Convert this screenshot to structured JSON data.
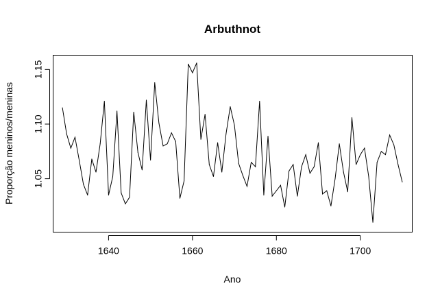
{
  "chart_data": {
    "type": "line",
    "title": "Arbuthnot",
    "xlabel": "Ano",
    "ylabel": "Proporção meninos/meninas",
    "xlim": [
      1626.7,
      1712.3
    ],
    "ylim": [
      1.0014,
      1.1634
    ],
    "x_ticks": [
      1640,
      1660,
      1680,
      1700
    ],
    "x_tick_labels": [
      "1640",
      "1660",
      "1680",
      "1700"
    ],
    "y_ticks": [
      1.05,
      1.1,
      1.15
    ],
    "y_tick_labels": [
      "1.05",
      "1.10",
      "1.15"
    ],
    "grid": false,
    "legend": "none",
    "series": [
      {
        "color": "#000000",
        "x": [
          1629,
          1630,
          1631,
          1632,
          1633,
          1634,
          1635,
          1636,
          1637,
          1638,
          1639,
          1640,
          1641,
          1642,
          1643,
          1644,
          1645,
          1646,
          1647,
          1648,
          1649,
          1650,
          1651,
          1652,
          1653,
          1654,
          1655,
          1656,
          1657,
          1658,
          1659,
          1660,
          1661,
          1662,
          1663,
          1664,
          1665,
          1666,
          1667,
          1668,
          1669,
          1670,
          1671,
          1672,
          1673,
          1674,
          1675,
          1676,
          1677,
          1678,
          1679,
          1680,
          1681,
          1682,
          1683,
          1684,
          1685,
          1686,
          1687,
          1688,
          1689,
          1690,
          1691,
          1692,
          1693,
          1694,
          1695,
          1696,
          1697,
          1698,
          1699,
          1700,
          1701,
          1702,
          1703,
          1704,
          1705,
          1706,
          1707,
          1708,
          1709,
          1710
        ],
        "y": [
          1.115,
          1.091,
          1.078,
          1.088,
          1.067,
          1.045,
          1.035,
          1.068,
          1.056,
          1.082,
          1.121,
          1.035,
          1.052,
          1.112,
          1.037,
          1.027,
          1.033,
          1.111,
          1.074,
          1.058,
          1.122,
          1.067,
          1.138,
          1.101,
          1.08,
          1.082,
          1.092,
          1.084,
          1.032,
          1.048,
          1.155,
          1.147,
          1.156,
          1.086,
          1.109,
          1.063,
          1.052,
          1.083,
          1.056,
          1.091,
          1.116,
          1.099,
          1.064,
          1.053,
          1.043,
          1.065,
          1.061,
          1.121,
          1.035,
          1.089,
          1.034,
          1.039,
          1.044,
          1.024,
          1.057,
          1.063,
          1.034,
          1.061,
          1.072,
          1.055,
          1.061,
          1.083,
          1.036,
          1.039,
          1.025,
          1.05,
          1.082,
          1.056,
          1.038,
          1.106,
          1.063,
          1.072,
          1.078,
          1.052,
          1.01,
          1.065,
          1.075,
          1.072,
          1.09,
          1.081,
          1.063,
          1.047
        ]
      }
    ]
  }
}
